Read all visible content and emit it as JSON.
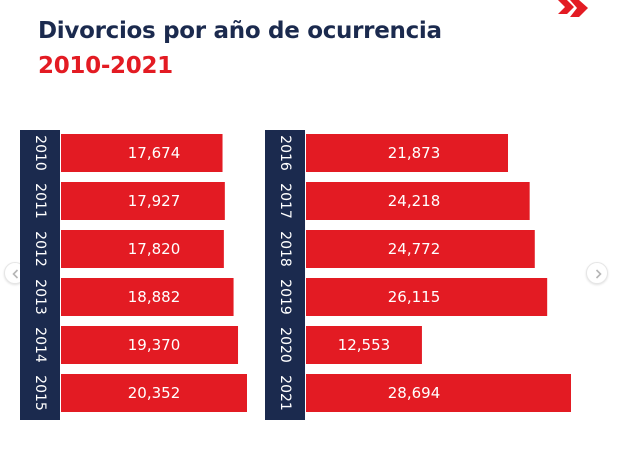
{
  "header": {
    "title": "Divorcios por año de ocurrencia",
    "subtitle": "2010-2021"
  },
  "icons": {
    "brand": "double-chevron-right-icon",
    "prev": "chevron-left-icon",
    "next": "chevron-right-icon"
  },
  "colors": {
    "bar": "#e31b23",
    "label_band": "#1b2a4e",
    "title": "#1b2a4e",
    "accent": "#e31b23"
  },
  "chart_data": {
    "type": "bar",
    "orientation": "horizontal",
    "title": "Divorcios por año de ocurrencia",
    "subtitle": "2010-2021",
    "categories": [
      "2010",
      "2011",
      "2012",
      "2013",
      "2014",
      "2015",
      "2016",
      "2017",
      "2018",
      "2019",
      "2020",
      "2021"
    ],
    "values": [
      17674,
      17927,
      17820,
      18882,
      19370,
      20352,
      21873,
      24218,
      24772,
      26115,
      12553,
      28694
    ],
    "value_labels": [
      "17,674",
      "17,927",
      "17,820",
      "18,882",
      "19,370",
      "20,352",
      "21,873",
      "24,218",
      "24,772",
      "26,115",
      "12,553",
      "28,694"
    ],
    "panels": [
      {
        "categories": [
          "2010",
          "2011",
          "2012",
          "2013",
          "2014",
          "2015"
        ],
        "values": [
          17674,
          17927,
          17820,
          18882,
          19370,
          20352
        ]
      },
      {
        "categories": [
          "2016",
          "2017",
          "2018",
          "2019",
          "2020",
          "2021"
        ],
        "values": [
          21873,
          24218,
          24772,
          26115,
          12553,
          28694
        ]
      }
    ],
    "xlim": [
      0,
      28694
    ],
    "xlabel": "",
    "ylabel": "",
    "grid": false,
    "legend": "none"
  }
}
